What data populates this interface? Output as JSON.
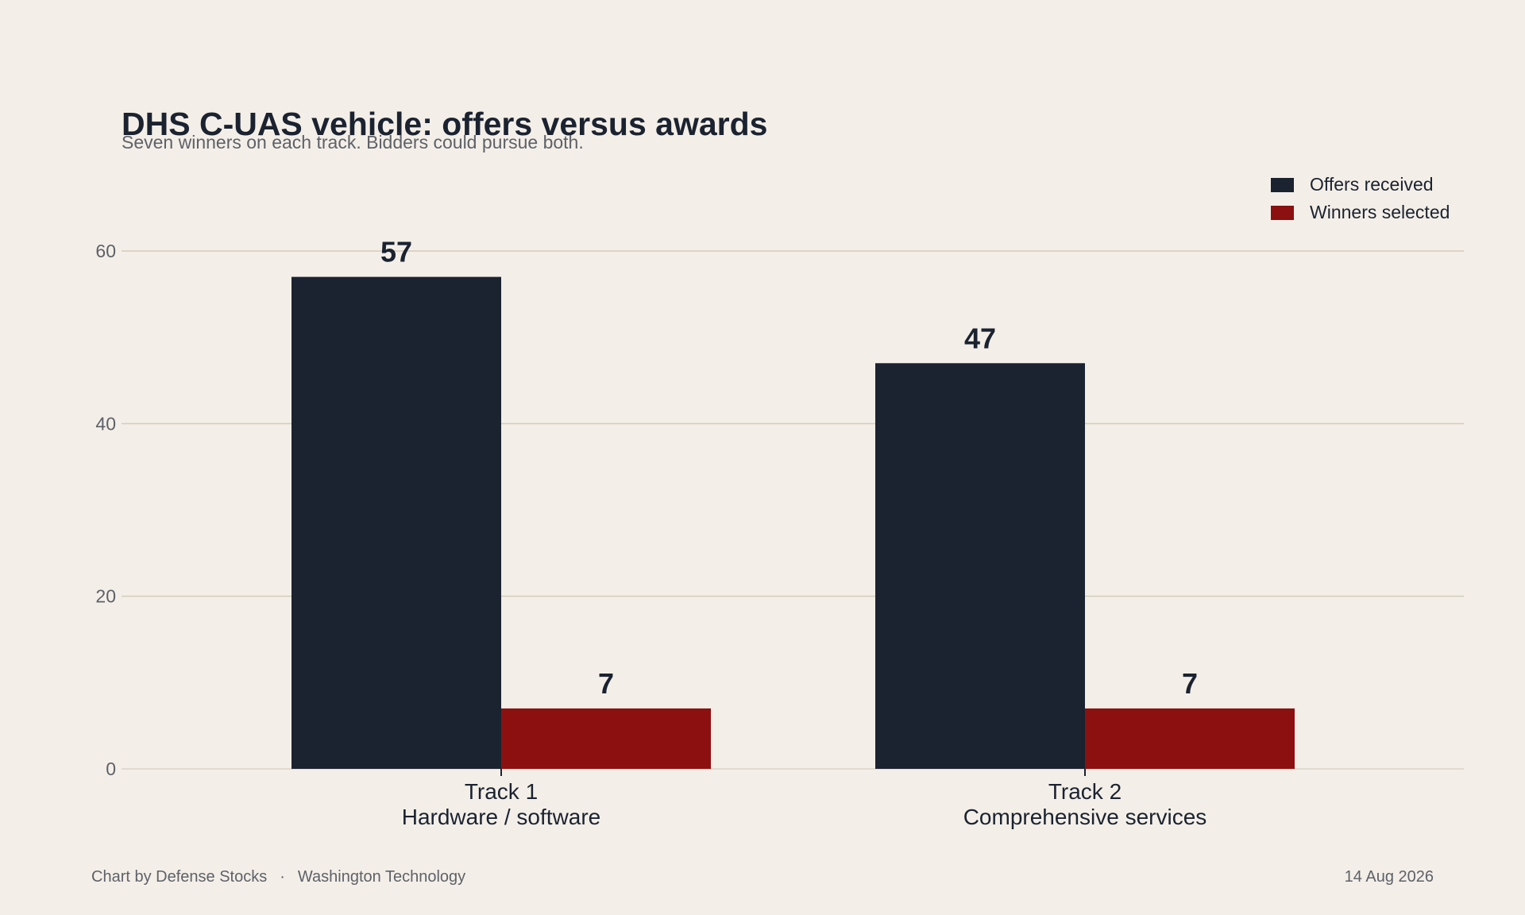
{
  "header": {
    "title": "DHS C-UAS vehicle: offers versus awards",
    "subtitle": "Seven winners on each track. Bidders could pursue both."
  },
  "footer": {
    "credit": "Chart by Defense Stocks",
    "separator": "·",
    "source": "Washington Technology",
    "date": "14 Aug 2026"
  },
  "colors": {
    "background": "#F3EFE8",
    "offers": "#1B2230",
    "winners": "#8C1010",
    "grid": "#D3CCBB",
    "text": "#1B2230",
    "muted": "#5E6168"
  },
  "chart_data": {
    "type": "bar",
    "title": "DHS C-UAS vehicle: offers versus awards",
    "subtitle": "Seven winners on each track. Bidders could pursue both.",
    "categories": [
      [
        "Track 1",
        "Hardware / software"
      ],
      [
        "Track 2",
        "Comprehensive services"
      ]
    ],
    "series": [
      {
        "name": "Offers received",
        "values": [
          57,
          47
        ],
        "color": "#1B2230"
      },
      {
        "name": "Winners selected",
        "values": [
          7,
          7
        ],
        "color": "#8C1010"
      }
    ],
    "ylim": [
      0,
      60
    ],
    "yticks": [
      0,
      20,
      40,
      60
    ],
    "xlabel": "",
    "ylabel": "",
    "grid": true,
    "legend_position": "top-right"
  }
}
